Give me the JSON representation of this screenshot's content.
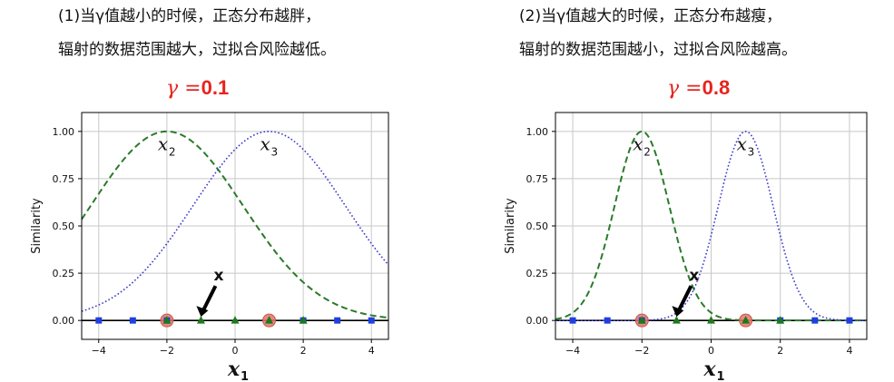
{
  "panels": [
    {
      "caption_line1": "(1)当γ值越小的时候，正态分布越胖，",
      "caption_line2": "辐射的数据范围越大，过拟合风险越低。",
      "gamma_symbol": "γ",
      "gamma_equals": " =",
      "gamma_value": "0.1"
    },
    {
      "caption_line1": "(2)当γ值越大的时候，正态分布越瘦，",
      "caption_line2": "辐射的数据范围越小，过拟合风险越高。",
      "gamma_symbol": "γ",
      "gamma_equals": " =",
      "gamma_value": "0.8"
    }
  ],
  "chart_data": [
    {
      "type": "line",
      "gamma": 0.1,
      "xlim": [
        -4.5,
        4.5
      ],
      "ylim": [
        -0.1,
        1.1
      ],
      "grid": true,
      "xlabel": "x",
      "xlabel_sub": "1",
      "ylabel": "Similarity",
      "xticks": [
        "−4",
        "−2",
        "0",
        "2",
        "4"
      ],
      "xtick_values": [
        -4,
        -2,
        0,
        2,
        4
      ],
      "yticks": [
        "0.00",
        "0.25",
        "0.50",
        "0.75",
        "1.00"
      ],
      "ytick_values": [
        0,
        0.25,
        0.5,
        0.75,
        1.0
      ],
      "series": [
        {
          "style": "dashed",
          "color": "#2a7a2a",
          "center": -2,
          "x": [
            -4.5,
            -4,
            -3.5,
            -3,
            -2.5,
            -2,
            -1.5,
            -1,
            -0.5,
            0,
            0.5,
            1,
            1.5,
            2,
            2.5,
            3,
            3.5,
            4,
            4.5
          ],
          "y": [
            0.535,
            0.67,
            0.799,
            0.905,
            0.975,
            1.0,
            0.975,
            0.905,
            0.799,
            0.67,
            0.535,
            0.407,
            0.295,
            0.202,
            0.133,
            0.082,
            0.049,
            0.027,
            0.015
          ]
        },
        {
          "style": "dotted",
          "color": "#3a3acc",
          "center": 1,
          "x": [
            -4.5,
            -4,
            -3.5,
            -3,
            -2.5,
            -2,
            -1.5,
            -1,
            -0.5,
            0,
            0.5,
            1,
            1.5,
            2,
            2.5,
            3,
            3.5,
            4,
            4.5
          ],
          "y": [
            0.049,
            0.082,
            0.132,
            0.202,
            0.294,
            0.407,
            0.535,
            0.67,
            0.799,
            0.905,
            0.975,
            1.0,
            0.975,
            0.905,
            0.799,
            0.67,
            0.535,
            0.407,
            0.294
          ]
        }
      ],
      "points_blue_squares": [
        -4,
        -3,
        -2,
        2,
        3,
        4
      ],
      "points_green_triangles": [
        -2,
        -1,
        0,
        1,
        2
      ],
      "landmarks": [
        -2,
        1
      ],
      "annotations": [
        {
          "text": "x",
          "sub": "2",
          "x": -2,
          "y": 0.95
        },
        {
          "text": "x",
          "sub": "3",
          "x": 1,
          "y": 0.95
        }
      ],
      "arrow": {
        "label": "x",
        "target_x": -1,
        "target_y": 0.0
      }
    },
    {
      "type": "line",
      "gamma": 0.8,
      "xlim": [
        -4.5,
        4.5
      ],
      "ylim": [
        -0.1,
        1.1
      ],
      "grid": true,
      "xlabel": "x",
      "xlabel_sub": "1",
      "ylabel": "Similarity",
      "xticks": [
        "−4",
        "−2",
        "0",
        "2",
        "4"
      ],
      "xtick_values": [
        -4,
        -2,
        0,
        2,
        4
      ],
      "yticks": [
        "0.00",
        "0.25",
        "0.50",
        "0.75",
        "1.00"
      ],
      "ytick_values": [
        0,
        0.25,
        0.5,
        0.75,
        1.0
      ],
      "series": [
        {
          "style": "dashed",
          "color": "#2a7a2a",
          "center": -2,
          "x": [
            -4.5,
            -4,
            -3.5,
            -3,
            -2.5,
            -2,
            -1.5,
            -1,
            -0.5,
            0,
            0.5,
            1,
            1.5,
            2,
            2.5,
            3,
            3.5,
            4,
            4.5
          ],
          "y": [
            0.007,
            0.041,
            0.165,
            0.449,
            0.819,
            1.0,
            0.819,
            0.449,
            0.165,
            0.041,
            0.007,
            0.001,
            0.0,
            0.0,
            0.0,
            0.0,
            0.0,
            0.0,
            0.0
          ]
        },
        {
          "style": "dotted",
          "color": "#3a3acc",
          "center": 1,
          "x": [
            -4.5,
            -4,
            -3.5,
            -3,
            -2.5,
            -2,
            -1.5,
            -1,
            -0.5,
            0,
            0.5,
            1,
            1.5,
            2,
            2.5,
            3,
            3.5,
            4,
            4.5
          ],
          "y": [
            0.0,
            0.0,
            0.0,
            0.0,
            0.0,
            0.001,
            0.007,
            0.041,
            0.165,
            0.449,
            0.819,
            1.0,
            0.819,
            0.449,
            0.165,
            0.041,
            0.007,
            0.001,
            0.0
          ]
        }
      ],
      "points_blue_squares": [
        -4,
        -3,
        -2,
        2,
        3,
        4
      ],
      "points_green_triangles": [
        -2,
        -1,
        0,
        1,
        2
      ],
      "landmarks": [
        -2,
        1
      ],
      "annotations": [
        {
          "text": "x",
          "sub": "2",
          "x": -2,
          "y": 0.95
        },
        {
          "text": "x",
          "sub": "3",
          "x": 1,
          "y": 0.95
        }
      ],
      "arrow": {
        "label": "x",
        "target_x": -1,
        "target_y": 0.0
      }
    }
  ]
}
